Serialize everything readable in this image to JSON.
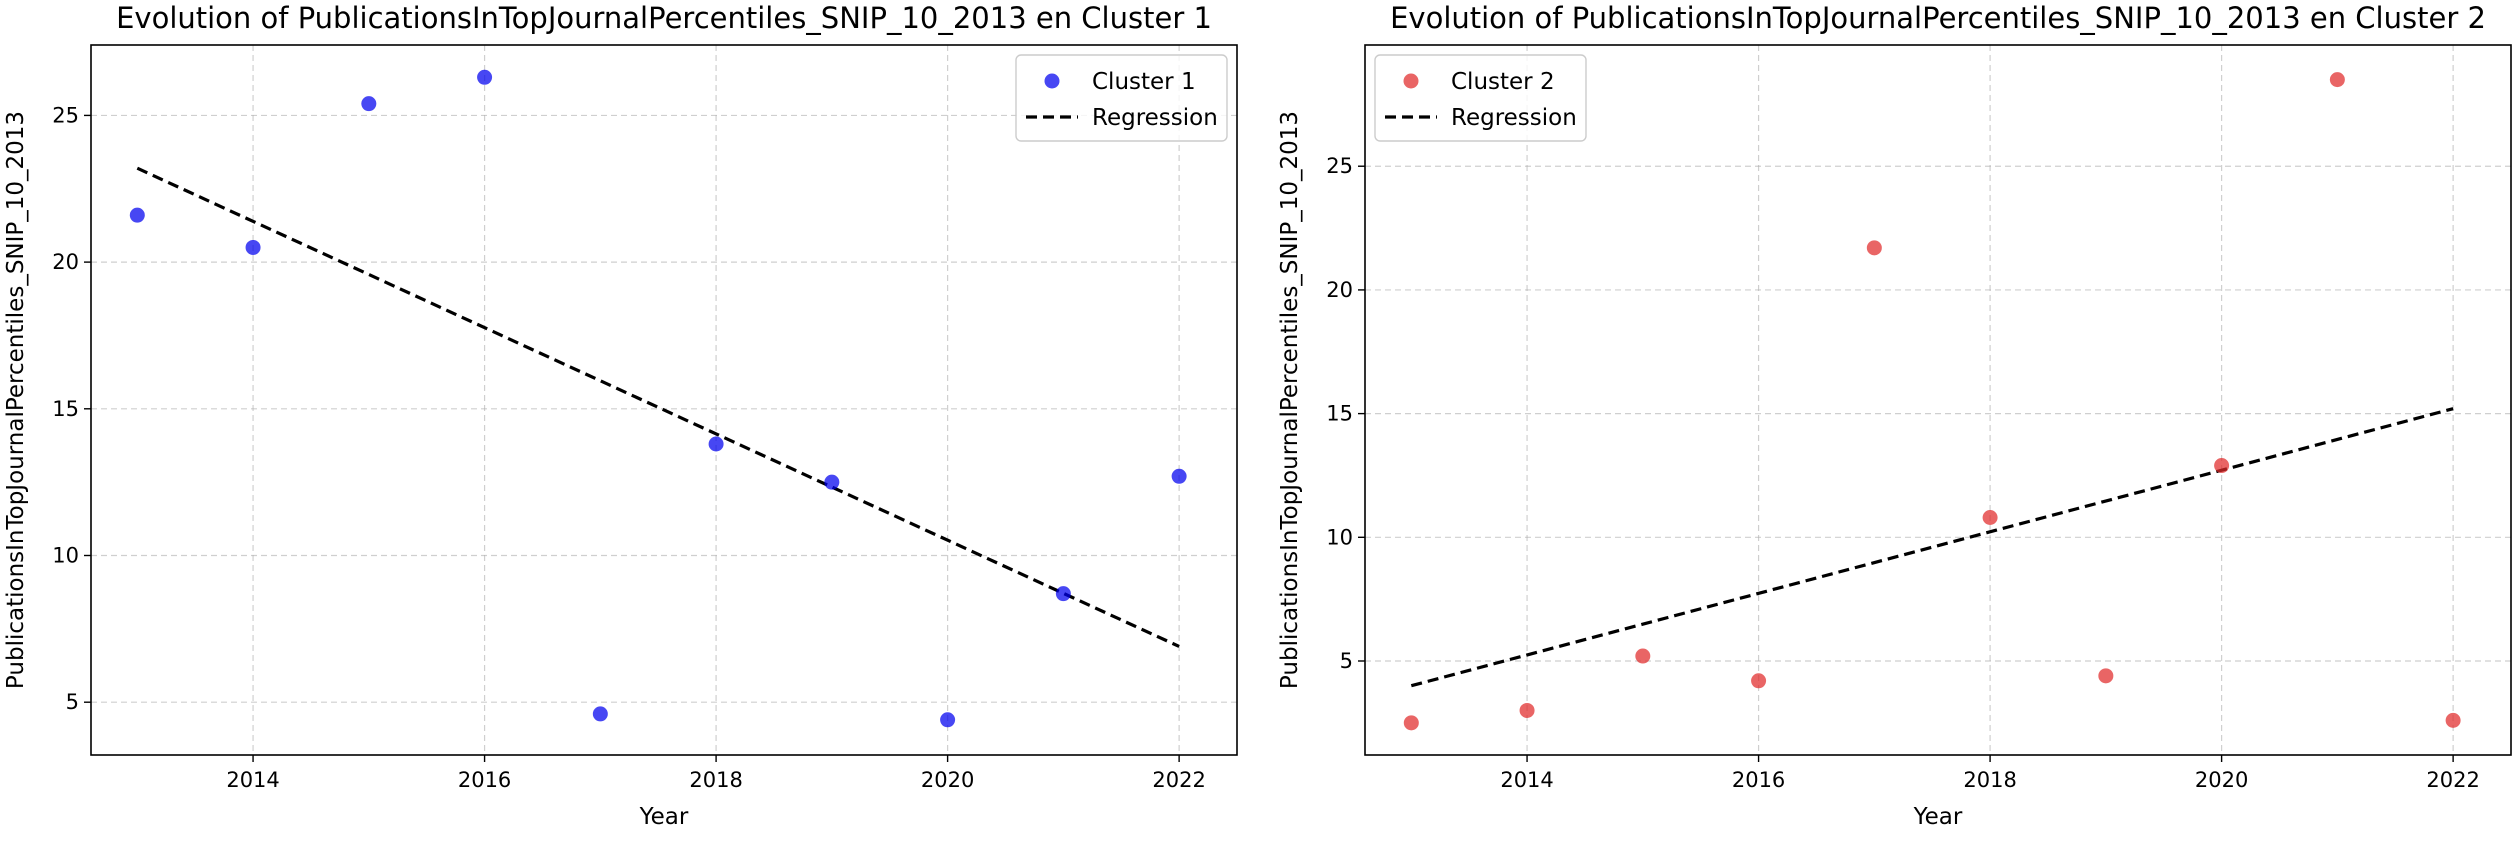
{
  "chart_data": [
    {
      "type": "scatter",
      "title": "Evolution of PublicationsInTopJournalPercentiles_SNIP_10_2013 en Cluster 1",
      "xlabel": "Year",
      "ylabel": "PublicationsInTopJournalPercentiles_SNIP_10_2013",
      "xlim": [
        2012.6,
        2022.5
      ],
      "ylim": [
        3.2,
        27.4
      ],
      "xticks": [
        2014,
        2016,
        2018,
        2020,
        2022
      ],
      "yticks": [
        5,
        10,
        15,
        20,
        25
      ],
      "grid": true,
      "legend_position": "top-right",
      "series": [
        {
          "name": "Cluster 1",
          "color": "#0000ee",
          "x": [
            2013,
            2014,
            2015,
            2016,
            2017,
            2018,
            2019,
            2020,
            2021,
            2022
          ],
          "y": [
            21.6,
            20.5,
            25.4,
            26.3,
            4.6,
            13.8,
            12.5,
            4.4,
            8.7,
            12.7
          ]
        }
      ],
      "regression": {
        "name": "Regression",
        "x": [
          2013,
          2022
        ],
        "y": [
          23.2,
          6.9
        ]
      }
    },
    {
      "type": "scatter",
      "title": "Evolution of PublicationsInTopJournalPercentiles_SNIP_10_2013 en Cluster 2",
      "xlabel": "Year",
      "ylabel": "PublicationsInTopJournalPercentiles_SNIP_10_2013",
      "xlim": [
        2012.6,
        2022.5
      ],
      "ylim": [
        1.2,
        29.9
      ],
      "xticks": [
        2014,
        2016,
        2018,
        2020,
        2022
      ],
      "yticks": [
        5,
        10,
        15,
        20,
        25
      ],
      "grid": true,
      "legend_position": "top-left",
      "series": [
        {
          "name": "Cluster 2",
          "color": "#e02a2a",
          "x": [
            2013,
            2014,
            2015,
            2016,
            2017,
            2018,
            2019,
            2020,
            2021,
            2022
          ],
          "y": [
            2.5,
            3.0,
            5.2,
            4.2,
            21.7,
            10.8,
            4.4,
            12.9,
            28.5,
            2.6
          ]
        }
      ],
      "regression": {
        "name": "Regression",
        "x": [
          2013,
          2022
        ],
        "y": [
          4.0,
          15.2
        ]
      }
    }
  ]
}
